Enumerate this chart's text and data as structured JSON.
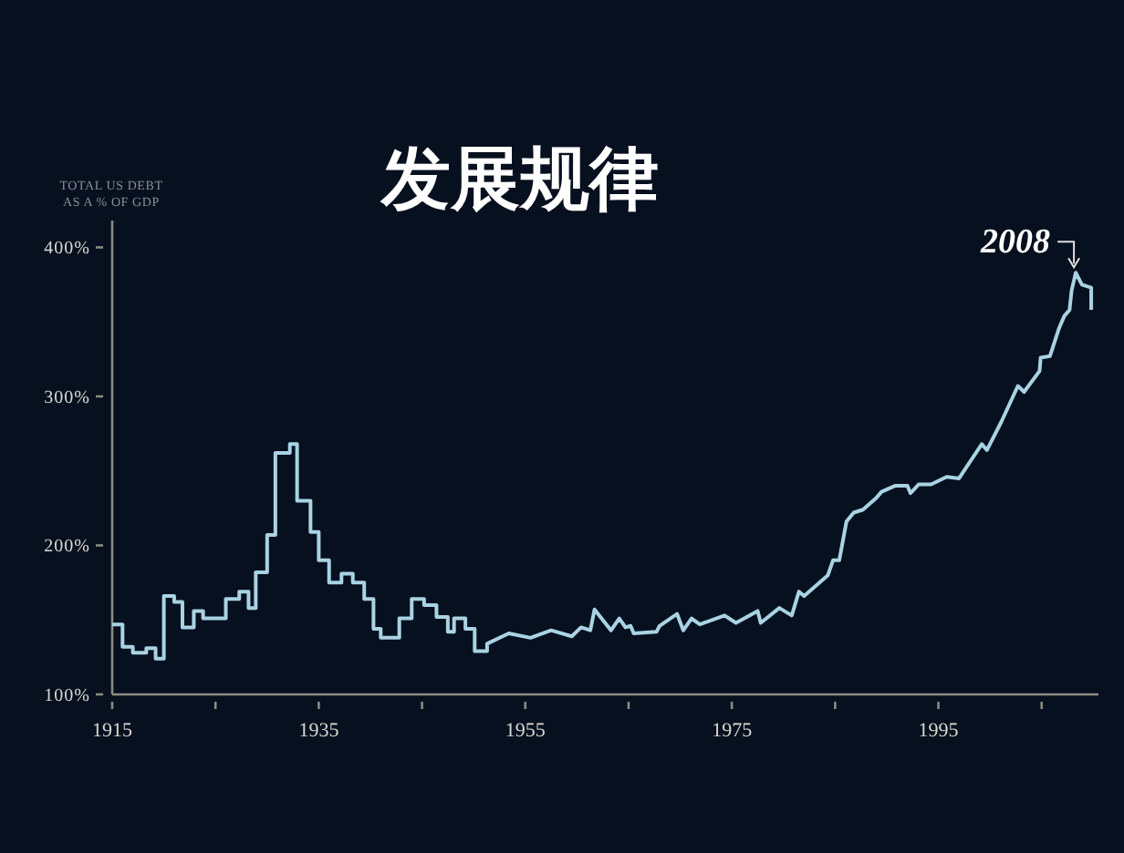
{
  "chart_data": {
    "type": "line",
    "title": "发展规律",
    "ylabel": "TOTAL US DEBT AS A % OF GDP",
    "annotations": [
      {
        "text": "2008",
        "x": 2008.3,
        "y": 383
      }
    ],
    "xlim": [
      1915,
      2010.5
    ],
    "ylim": [
      100,
      418
    ],
    "xticks": [
      1915,
      {
        "value": 1925,
        "label": null
      },
      1935,
      {
        "value": 1945,
        "label": null
      },
      1955,
      {
        "value": 1965,
        "label": null
      },
      1975,
      {
        "value": 1985,
        "label": null
      },
      1995,
      {
        "value": 2005,
        "label": null
      }
    ],
    "yticks": [
      {
        "value": 100,
        "label": "100%"
      },
      {
        "value": 200,
        "label": "200%"
      },
      {
        "value": 300,
        "label": "300%"
      },
      {
        "value": 400,
        "label": "400%"
      }
    ],
    "grid": false,
    "series": [
      {
        "color": "#a9d3e3",
        "x": [
          1915,
          1916,
          1916,
          1917,
          1917,
          1918.3,
          1918.3,
          1919.2,
          1919.2,
          1920,
          1920,
          1921,
          1921,
          1921.8,
          1921.8,
          1922.9,
          1922.9,
          1923.8,
          1923.8,
          1926,
          1926,
          1927.3,
          1927.3,
          1928.2,
          1928.2,
          1928.9,
          1928.9,
          1930,
          1930,
          1930.8,
          1930.8,
          1932.2,
          1932.2,
          1932.9,
          1932.9,
          1934.2,
          1934.2,
          1935,
          1935,
          1936,
          1936,
          1937.2,
          1937.2,
          1938.3,
          1938.3,
          1939.4,
          1939.4,
          1940.3,
          1940.3,
          1941,
          1941,
          1942.8,
          1942.8,
          1944,
          1944,
          1945.2,
          1945.2,
          1946.4,
          1946.4,
          1947.5,
          1947.5,
          1948.1,
          1948.1,
          1949.2,
          1949.2,
          1950.1,
          1950.1,
          1951.3,
          1951.3,
          1953.4,
          1955.5,
          1957.5,
          1959.5,
          1960.4,
          1961.3,
          1961.7,
          1963.3,
          1964.1,
          1964.7,
          1965.2,
          1965.5,
          1967.7,
          1968,
          1969.7,
          1970.3,
          1971.1,
          1971.9,
          1974.3,
          1975.4,
          1977.5,
          1977.8,
          1979.6,
          1980.8,
          1981.5,
          1982,
          1984.3,
          1984.8,
          1985.4,
          1986.1,
          1986.8,
          1987.7,
          1989,
          1989.5,
          1990.8,
          1992,
          1992.3,
          1993.1,
          1994.3,
          1995.8,
          1997,
          1999.2,
          1999.7,
          2001.1,
          2002.7,
          2003.3,
          2004.8,
          2004.9,
          2005.8,
          2006.7,
          2007.2,
          2007.7,
          2007.9,
          2008.3,
          2008.9,
          2009.8,
          2009.8
        ],
        "values": [
          147,
          147,
          132,
          132,
          128,
          128,
          131,
          131,
          124,
          124,
          166,
          166,
          162,
          162,
          145,
          145,
          156,
          156,
          151,
          151,
          164,
          164,
          169,
          169,
          158,
          158,
          182,
          182,
          207,
          207,
          262,
          262,
          268,
          268,
          230,
          230,
          209,
          209,
          190,
          190,
          175,
          175,
          181,
          181,
          175,
          175,
          164,
          164,
          144,
          144,
          138,
          138,
          151,
          151,
          164,
          164,
          160,
          160,
          152,
          152,
          142,
          142,
          151,
          151,
          144,
          144,
          129,
          129,
          134,
          141,
          138,
          143,
          139,
          145,
          143,
          157,
          143,
          151,
          145,
          146,
          141,
          142,
          146,
          154,
          143,
          151,
          147,
          153,
          148,
          156,
          148,
          158,
          153,
          169,
          166,
          180,
          190,
          190,
          216,
          222,
          224,
          232,
          236,
          240,
          240,
          235,
          241,
          241,
          246,
          245,
          268,
          264,
          283,
          307,
          303,
          317,
          326,
          327,
          346,
          354,
          358,
          371,
          383,
          375,
          373,
          358
        ]
      }
    ]
  }
}
